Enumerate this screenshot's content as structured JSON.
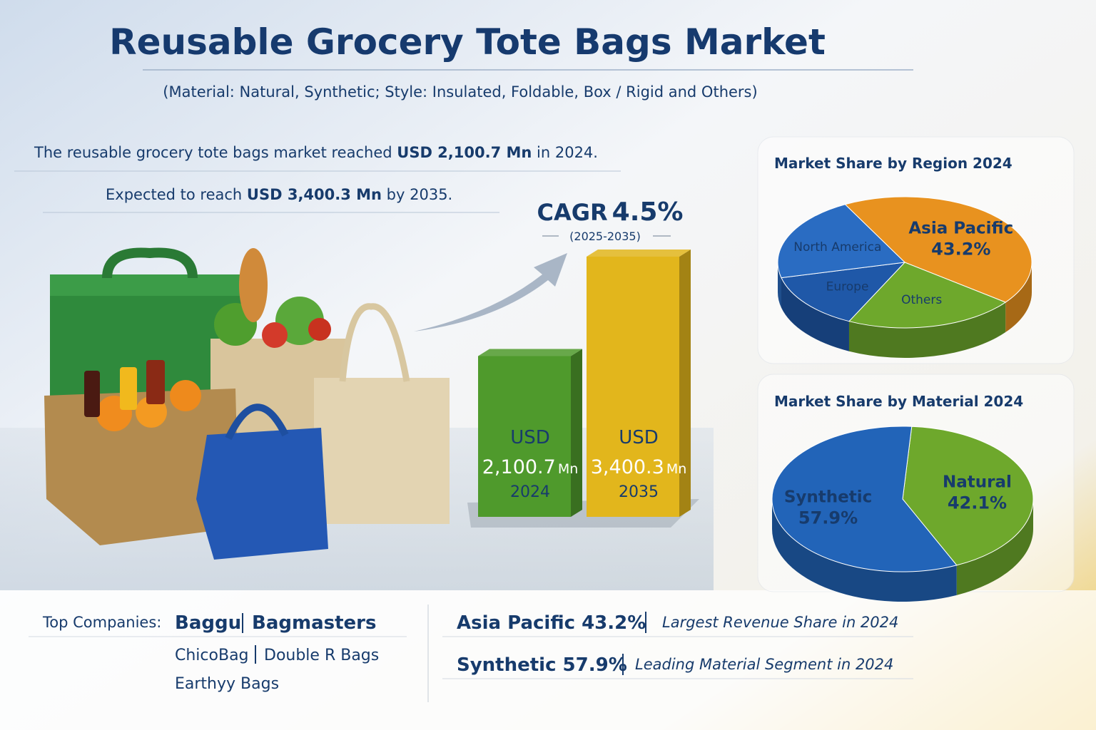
{
  "header": {
    "title": "Reusable Grocery  Tote Bags Market",
    "subtitle": "(Material: Natural, Synthetic; Style: Insulated, Foldable, Box / Rigid and Others)"
  },
  "summary": [
    [
      "The reusable grocery tote bags market reached ",
      "USD 2,100.7 Mn",
      " in 2024."
    ],
    [
      "Expected to reach ",
      "USD 3,400.3 Mn",
      " by 2035."
    ]
  ],
  "cagr": {
    "label": "CAGR",
    "value": "4.5%",
    "period": "(2025-2035)"
  },
  "chart_data": [
    {
      "type": "bar",
      "categories": [
        "2024",
        "2035"
      ],
      "values": [
        2100.7,
        3400.3
      ],
      "value_labels": [
        "2,100.7",
        "3,400.3"
      ],
      "value_prefix": "USD",
      "value_unit": "Mn",
      "colors": [
        "#4f9a2c",
        "#e2b61c"
      ]
    },
    {
      "type": "pie",
      "title": "Market Share by Region 2024",
      "categories": [
        "Asia Pacific",
        "Others",
        "Europe",
        "North America"
      ],
      "values": [
        43.2,
        21.8,
        14,
        21
      ],
      "value_labels": [
        "43.2%",
        null,
        null,
        null
      ],
      "colors": [
        "#e8921f",
        "#6ea82c",
        "#1f58a8",
        "#2a6cc2"
      ]
    },
    {
      "type": "pie",
      "title": "Market Share by Material 2024",
      "categories": [
        "Natural",
        "Synthetic"
      ],
      "values": [
        42.1,
        57.9
      ],
      "value_labels": [
        "42.1%",
        "57.9%"
      ],
      "colors": [
        "#6ea82c",
        "#2264b8"
      ]
    }
  ],
  "footer": {
    "companies_label": "Top Companies:",
    "companies": [
      "Baggu",
      "Bagmasters",
      "ChicoBag",
      "Double R Bags",
      "Earthyy Bags"
    ],
    "highlights": [
      {
        "title": "Asia Pacific 43.2%",
        "text": "Largest Revenue Share in 2024"
      },
      {
        "title": "Synthetic 57.9%",
        "text": "Leading Material Segment in 2024"
      }
    ]
  }
}
